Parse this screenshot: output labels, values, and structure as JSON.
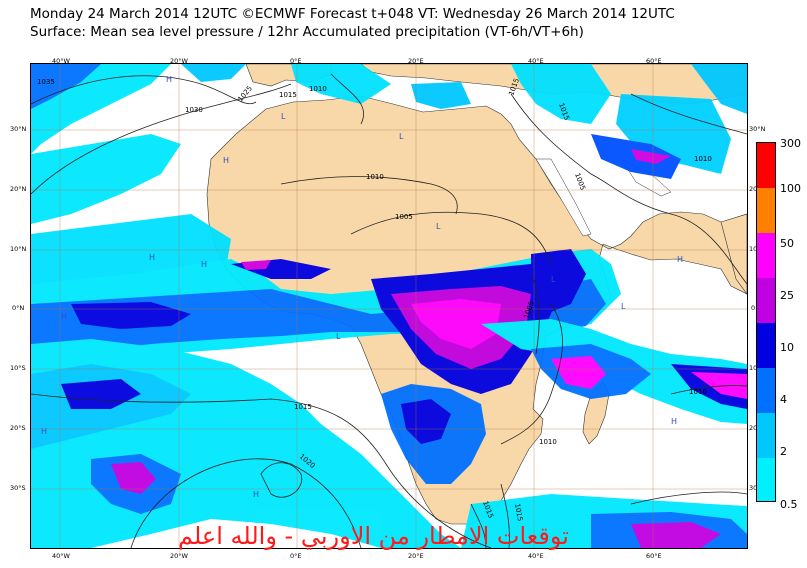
{
  "header": {
    "line1": "Monday 24 March 2014 12UTC ©ECMWF Forecast t+048 VT: Wednesday 26 March 2014 12UTC",
    "line2": "Surface: Mean sea level pressure / 12hr Accumulated precipitation (VT-6h/VT+6h)"
  },
  "map": {
    "lon_top": [
      "40°W",
      "20°W",
      "0°E",
      "20°E",
      "40°E",
      "60°E"
    ],
    "lon_bottom": [
      "40°W",
      "20°W",
      "0°E",
      "20°E",
      "40°E",
      "60°E"
    ],
    "lat_left": [
      "30°N",
      "20°N",
      "10°N",
      "0°N",
      "10°S",
      "20°S",
      "30°S"
    ],
    "lat_right": [
      "30°N",
      "20",
      "10",
      "0",
      "10",
      "20",
      "30"
    ],
    "isobars": [
      "1035",
      "1030",
      "1025",
      "1015",
      "1010",
      "1015",
      "1015",
      "1010",
      "1005",
      "1010",
      "1005",
      "1005",
      "1015",
      "1020",
      "1010",
      "1010",
      "1015",
      "1015"
    ],
    "pressure_centres": [
      "H",
      "H",
      "H",
      "H",
      "H",
      "H",
      "L",
      "L",
      "L",
      "L",
      "L",
      "L",
      "H",
      "H",
      "H"
    ],
    "ocean_color": "#ffffff",
    "land_color": "#f8d8a8"
  },
  "legend": {
    "labels": [
      "300",
      "100",
      "50",
      "25",
      "10",
      "4",
      "2",
      "0.5"
    ],
    "colors": [
      "#ff0000",
      "#ff8000",
      "#ff00ff",
      "#c000e0",
      "#0000e0",
      "#0070ff",
      "#00c8ff",
      "#00f0ff"
    ]
  },
  "watermark": "توقعات الامطار من الاوربي - والله اعلم"
}
